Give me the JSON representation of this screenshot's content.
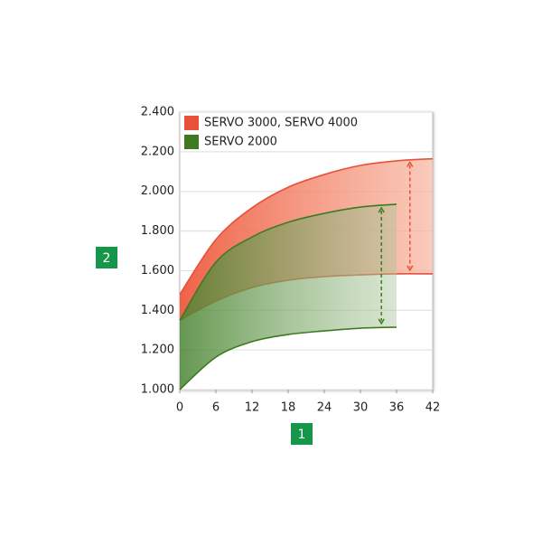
{
  "chart_data": {
    "type": "range_area",
    "x_label": "1",
    "y_label": "2",
    "x": [
      0,
      6,
      12,
      18,
      24,
      30,
      36,
      42
    ],
    "series": [
      {
        "name": "SERVO 3000, SERVO 4000",
        "color": "#e8503a",
        "high": [
          1480,
          1757,
          1917,
          2021,
          2085,
          2131,
          2154,
          2165
        ],
        "low": [
          1350,
          1447,
          1515,
          1552,
          1570,
          1579,
          1584,
          1584
        ]
      },
      {
        "name": "SERVO 2000",
        "color": "#3f7a22",
        "high": [
          1350,
          1643,
          1770,
          1844,
          1889,
          1921,
          1935,
          null
        ],
        "low": [
          1000,
          1164,
          1242,
          1278,
          1296,
          1310,
          1315,
          null
        ]
      }
    ],
    "xlim": [
      0,
      42
    ],
    "xticks": [
      0,
      6,
      12,
      18,
      24,
      30,
      36,
      42
    ],
    "ylim": [
      1000,
      2400
    ],
    "yticks": [
      {
        "value": 1000,
        "label": "1.000"
      },
      {
        "value": 1200,
        "label": "1.200"
      },
      {
        "value": 1400,
        "label": "1.400"
      },
      {
        "value": 1600,
        "label": "1.600"
      },
      {
        "value": 1800,
        "label": "1.800"
      },
      {
        "value": 2000,
        "label": "2.000"
      },
      {
        "value": 2200,
        "label": "2.200"
      },
      {
        "value": 2400,
        "label": "2.400"
      }
    ],
    "grid": true,
    "legend": "top-left"
  }
}
